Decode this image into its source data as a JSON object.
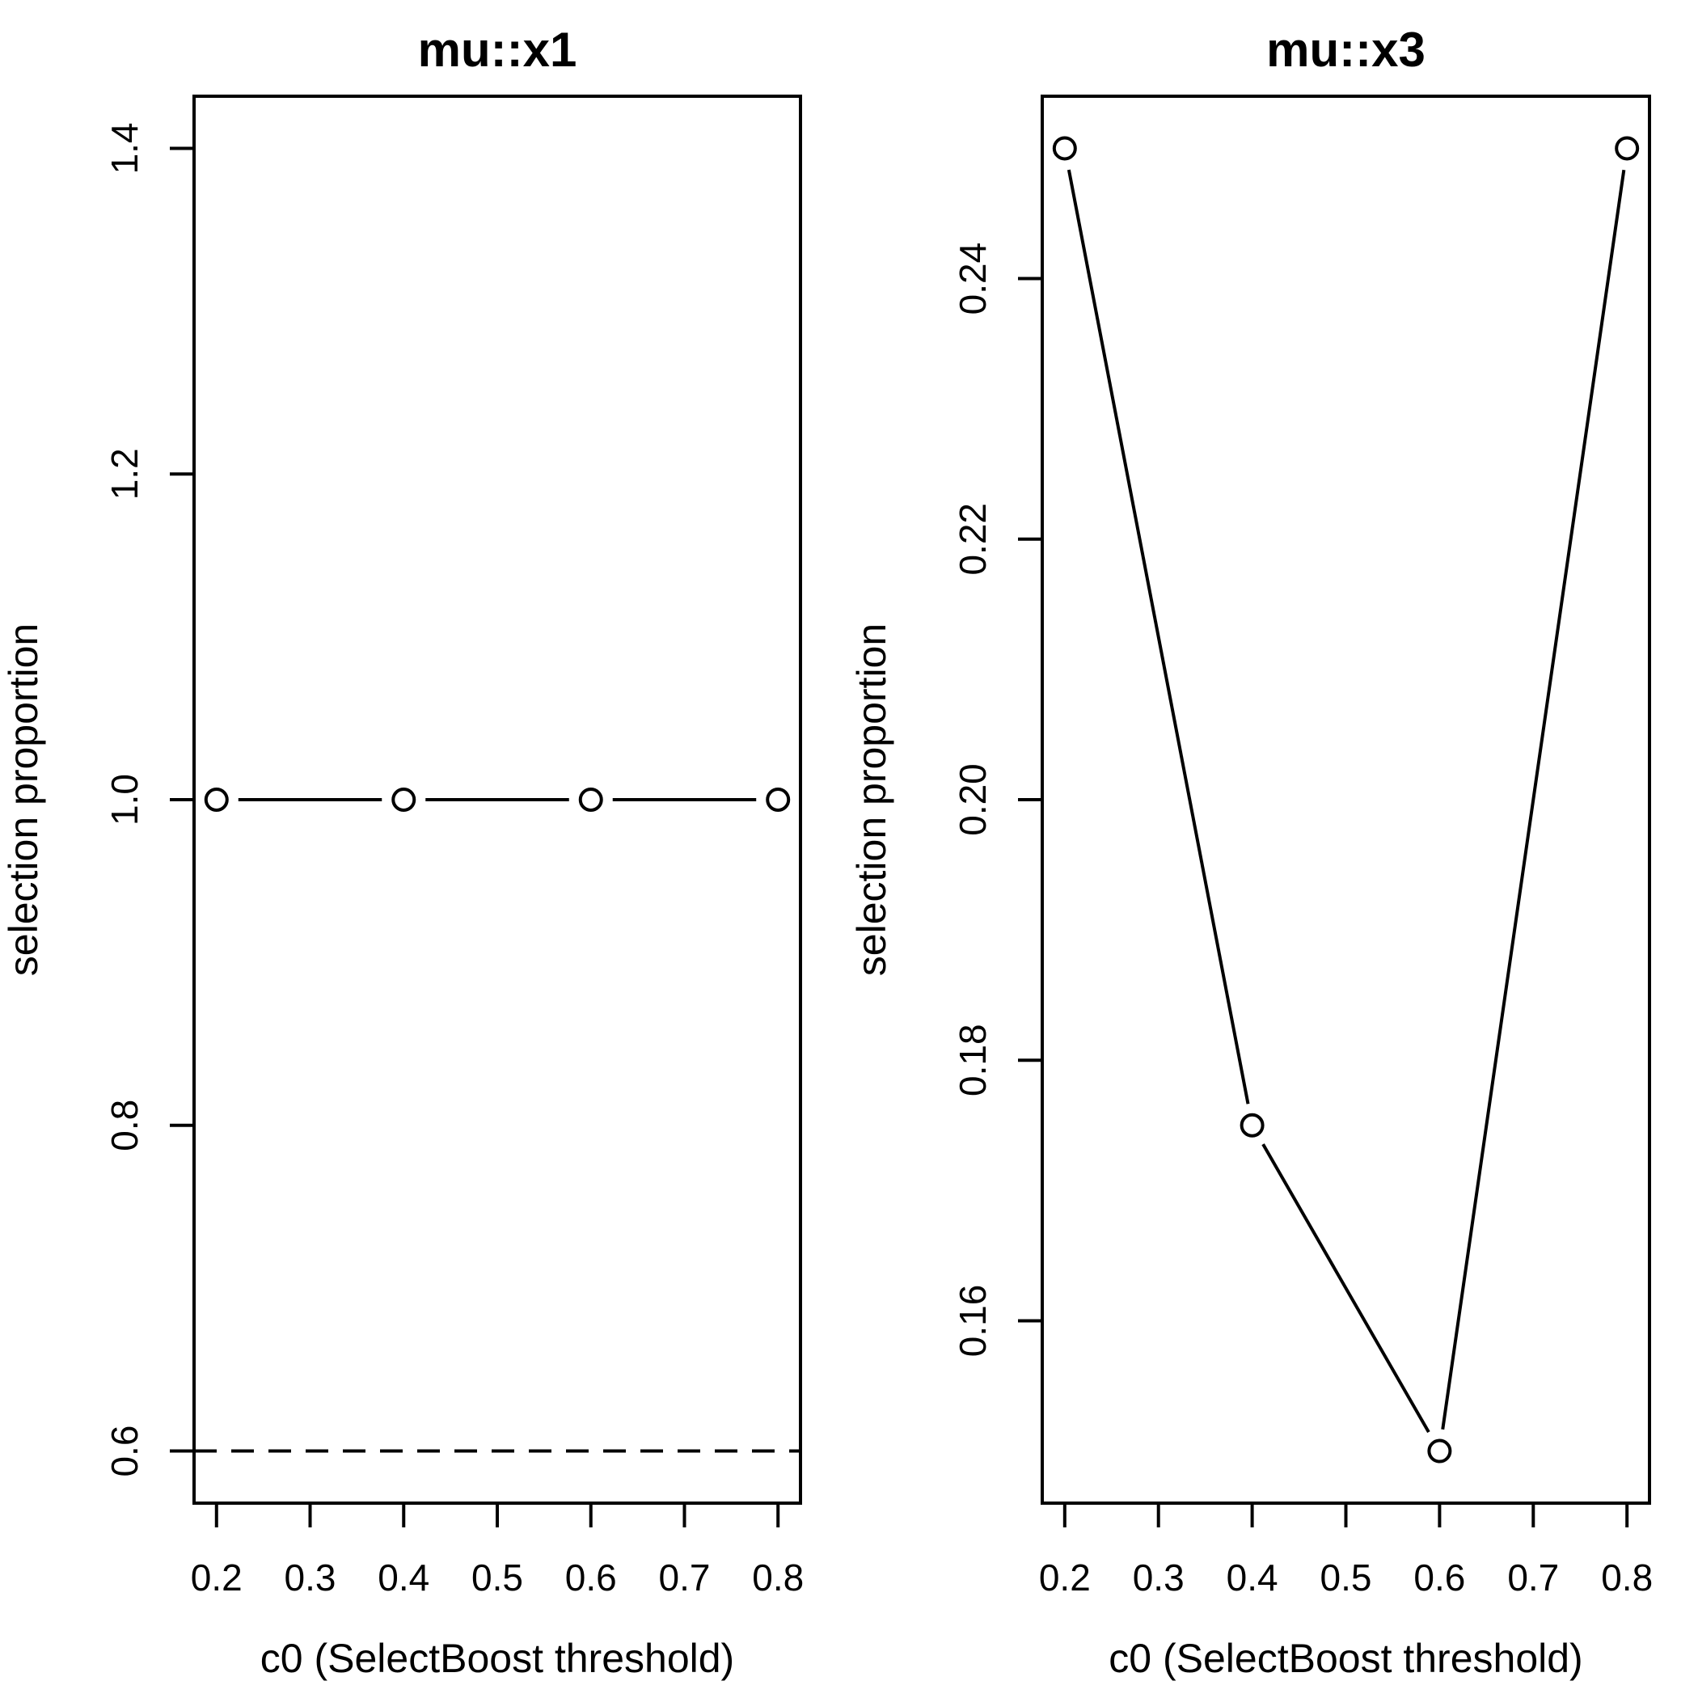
{
  "figure": {
    "description": "Two side-by-side base-R style line plots of selection proportion versus SelectBoost threshold",
    "background": "#ffffff"
  },
  "colors": {
    "foreground": "#000000",
    "background": "#ffffff"
  },
  "chart_data": [
    {
      "type": "line",
      "title": "mu::x1",
      "xlabel": "c0 (SelectBoost threshold)",
      "ylabel": "selection proportion",
      "x": [
        0.2,
        0.4,
        0.6,
        0.8
      ],
      "y": [
        1.0,
        1.0,
        1.0,
        1.0
      ],
      "xticks": [
        0.2,
        0.3,
        0.4,
        0.5,
        0.6,
        0.7,
        0.8
      ],
      "xtick_labels": [
        "0.2",
        "0.3",
        "0.4",
        "0.5",
        "0.6",
        "0.7",
        "0.8"
      ],
      "yticks": [
        0.6,
        0.8,
        1.0,
        1.2,
        1.4
      ],
      "ytick_labels": [
        "0.6",
        "0.8",
        "1.0",
        "1.2",
        "1.4"
      ],
      "xlim": [
        0.176,
        0.824
      ],
      "ylim": [
        0.568,
        1.432
      ],
      "hline_dashed": 0.6,
      "marker": "open-circle",
      "line_type": "points-and-segments",
      "grid": false,
      "legend": null
    },
    {
      "type": "line",
      "title": "mu::x3",
      "xlabel": "c0 (SelectBoost threshold)",
      "ylabel": "selection proportion",
      "x": [
        0.2,
        0.4,
        0.6,
        0.8
      ],
      "y": [
        0.25,
        0.175,
        0.15,
        0.25
      ],
      "xticks": [
        0.2,
        0.3,
        0.4,
        0.5,
        0.6,
        0.7,
        0.8
      ],
      "xtick_labels": [
        "0.2",
        "0.3",
        "0.4",
        "0.5",
        "0.6",
        "0.7",
        "0.8"
      ],
      "yticks": [
        0.16,
        0.18,
        0.2,
        0.22,
        0.24
      ],
      "ytick_labels": [
        "0.16",
        "0.18",
        "0.20",
        "0.22",
        "0.24"
      ],
      "xlim": [
        0.176,
        0.824
      ],
      "ylim": [
        0.146,
        0.254
      ],
      "hline_dashed": null,
      "marker": "open-circle",
      "line_type": "points-and-segments",
      "grid": false,
      "legend": null
    }
  ]
}
